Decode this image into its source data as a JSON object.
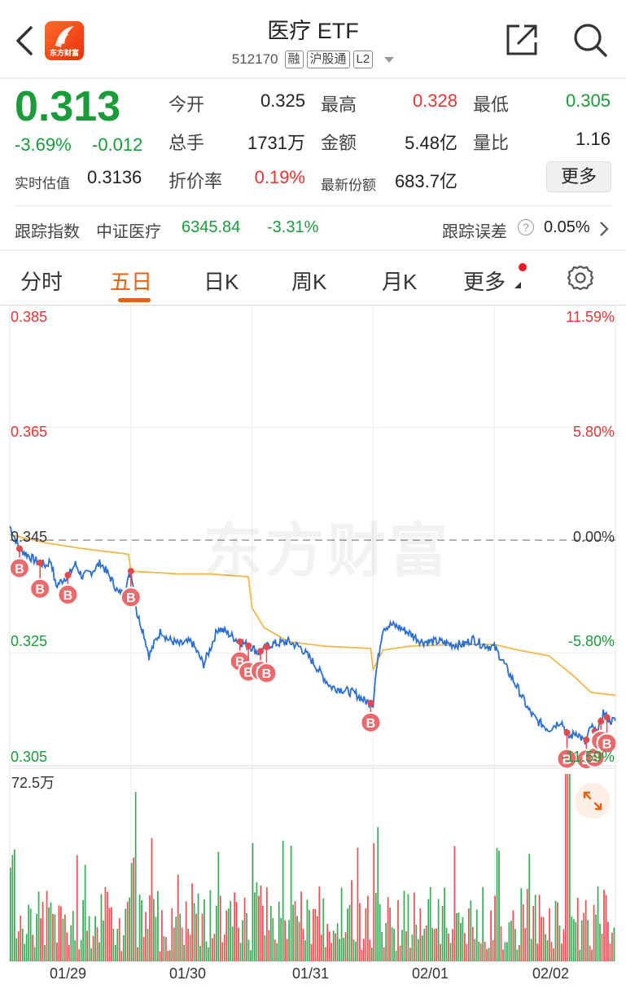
{
  "header": {
    "title": "医疗 ETF",
    "code": "512170",
    "tags": [
      "融",
      "沪股通",
      "L2"
    ],
    "logo_text": "东方财富"
  },
  "quote": {
    "price": "0.313",
    "change_pct": "-3.69%",
    "change": "-0.012",
    "est_label": "实时估值",
    "est_value": "0.3136",
    "fields": {
      "open_label": "今开",
      "open": "0.325",
      "high_label": "最高",
      "high": "0.328",
      "low_label": "最低",
      "low": "0.305",
      "vol_label": "总手",
      "vol": "1731万",
      "amount_label": "金额",
      "amount": "5.48亿",
      "ratio_label": "量比",
      "ratio": "1.16",
      "discount_label": "折价率",
      "discount": "0.19%",
      "shares_label": "最新份额",
      "shares": "683.7亿"
    },
    "more_label": "更多"
  },
  "tracking": {
    "label": "跟踪指数",
    "index_name": "中证医疗",
    "index_value": "6345.84",
    "index_change": "-3.31%",
    "error_label": "跟踪误差",
    "error_value": "0.05%"
  },
  "tabs": [
    "分时",
    "五日",
    "日K",
    "周K",
    "月K",
    "更多"
  ],
  "active_tab": "五日",
  "colors": {
    "up": "#e53535",
    "down": "#1a9c3a",
    "accent": "#e8600c",
    "price_line": "#2a6fd1",
    "avg_line": "#f2b84b"
  },
  "chart_data": {
    "type": "line",
    "watermark": "东方财富",
    "y_left_ticks": [
      "0.385",
      "0.365",
      "0.345",
      "0.325",
      "0.305"
    ],
    "y_right_ticks": [
      "11.59%",
      "5.80%",
      "0.00%",
      "-5.80%",
      "-11.59%"
    ],
    "ylim": [
      0.305,
      0.385
    ],
    "reference": 0.345,
    "x_dates": [
      "01/29",
      "01/30",
      "01/31",
      "02/01",
      "02/02"
    ],
    "price_anchors": [
      [
        0,
        0.3475
      ],
      [
        0.08,
        0.3435
      ],
      [
        0.2,
        0.3415
      ],
      [
        0.3,
        0.3405
      ],
      [
        0.34,
        0.3415
      ],
      [
        0.38,
        0.3368
      ],
      [
        0.5,
        0.3392
      ],
      [
        0.54,
        0.3408
      ],
      [
        0.6,
        0.3385
      ],
      [
        0.68,
        0.3395
      ],
      [
        0.75,
        0.341
      ],
      [
        0.84,
        0.338
      ],
      [
        0.9,
        0.3355
      ],
      [
        0.95,
        0.336
      ],
      [
        1.0,
        0.3395
      ],
      [
        1.02,
        0.337
      ],
      [
        1.05,
        0.332
      ],
      [
        1.1,
        0.329
      ],
      [
        1.15,
        0.3245
      ],
      [
        1.2,
        0.327
      ],
      [
        1.25,
        0.329
      ],
      [
        1.3,
        0.3275
      ],
      [
        1.4,
        0.3265
      ],
      [
        1.5,
        0.327
      ],
      [
        1.55,
        0.325
      ],
      [
        1.6,
        0.323
      ],
      [
        1.65,
        0.3255
      ],
      [
        1.72,
        0.3295
      ],
      [
        1.8,
        0.3285
      ],
      [
        1.9,
        0.327
      ],
      [
        2.0,
        0.326
      ],
      [
        2.05,
        0.325
      ],
      [
        2.15,
        0.3265
      ],
      [
        2.3,
        0.327
      ],
      [
        2.4,
        0.326
      ],
      [
        2.5,
        0.3235
      ],
      [
        2.58,
        0.321
      ],
      [
        2.65,
        0.319
      ],
      [
        2.75,
        0.3185
      ],
      [
        2.85,
        0.3178
      ],
      [
        2.93,
        0.3165
      ],
      [
        3.0,
        0.316
      ],
      [
        3.02,
        0.321
      ],
      [
        3.08,
        0.3295
      ],
      [
        3.15,
        0.33
      ],
      [
        3.22,
        0.3295
      ],
      [
        3.3,
        0.3285
      ],
      [
        3.4,
        0.327
      ],
      [
        3.55,
        0.327
      ],
      [
        3.65,
        0.3265
      ],
      [
        3.75,
        0.3265
      ],
      [
        3.82,
        0.3275
      ],
      [
        3.9,
        0.3265
      ],
      [
        4.0,
        0.326
      ],
      [
        4.06,
        0.324
      ],
      [
        4.12,
        0.3215
      ],
      [
        4.2,
        0.3185
      ],
      [
        4.28,
        0.315
      ],
      [
        4.35,
        0.313
      ],
      [
        4.45,
        0.3115
      ],
      [
        4.55,
        0.313
      ],
      [
        4.62,
        0.31
      ],
      [
        4.68,
        0.311
      ],
      [
        4.75,
        0.309
      ],
      [
        4.8,
        0.312
      ],
      [
        4.85,
        0.3105
      ],
      [
        4.9,
        0.3145
      ],
      [
        4.95,
        0.313
      ],
      [
        5.0,
        0.313
      ]
    ],
    "avg_anchors": [
      [
        0,
        0.346
      ],
      [
        0.3,
        0.3445
      ],
      [
        0.6,
        0.3435
      ],
      [
        0.98,
        0.3425
      ],
      [
        1.0,
        0.3395
      ],
      [
        1.4,
        0.339
      ],
      [
        1.65,
        0.339
      ],
      [
        1.97,
        0.3385
      ],
      [
        2.0,
        0.333
      ],
      [
        2.1,
        0.3295
      ],
      [
        2.3,
        0.327
      ],
      [
        2.6,
        0.3262
      ],
      [
        2.98,
        0.3258
      ],
      [
        3.0,
        0.322
      ],
      [
        3.08,
        0.3255
      ],
      [
        3.3,
        0.3262
      ],
      [
        3.7,
        0.3265
      ],
      [
        4.0,
        0.3265
      ],
      [
        4.2,
        0.3255
      ],
      [
        4.45,
        0.3245
      ],
      [
        4.65,
        0.321
      ],
      [
        4.8,
        0.318
      ],
      [
        5.0,
        0.3175
      ]
    ],
    "buy_marks": [
      0.08,
      0.25,
      0.48,
      1.0,
      1.9,
      1.97,
      2.07,
      2.12,
      2.98,
      4.6,
      4.76,
      4.83,
      4.88,
      4.93
    ],
    "buy_label": "B",
    "volume_max_label": "72.5万"
  }
}
